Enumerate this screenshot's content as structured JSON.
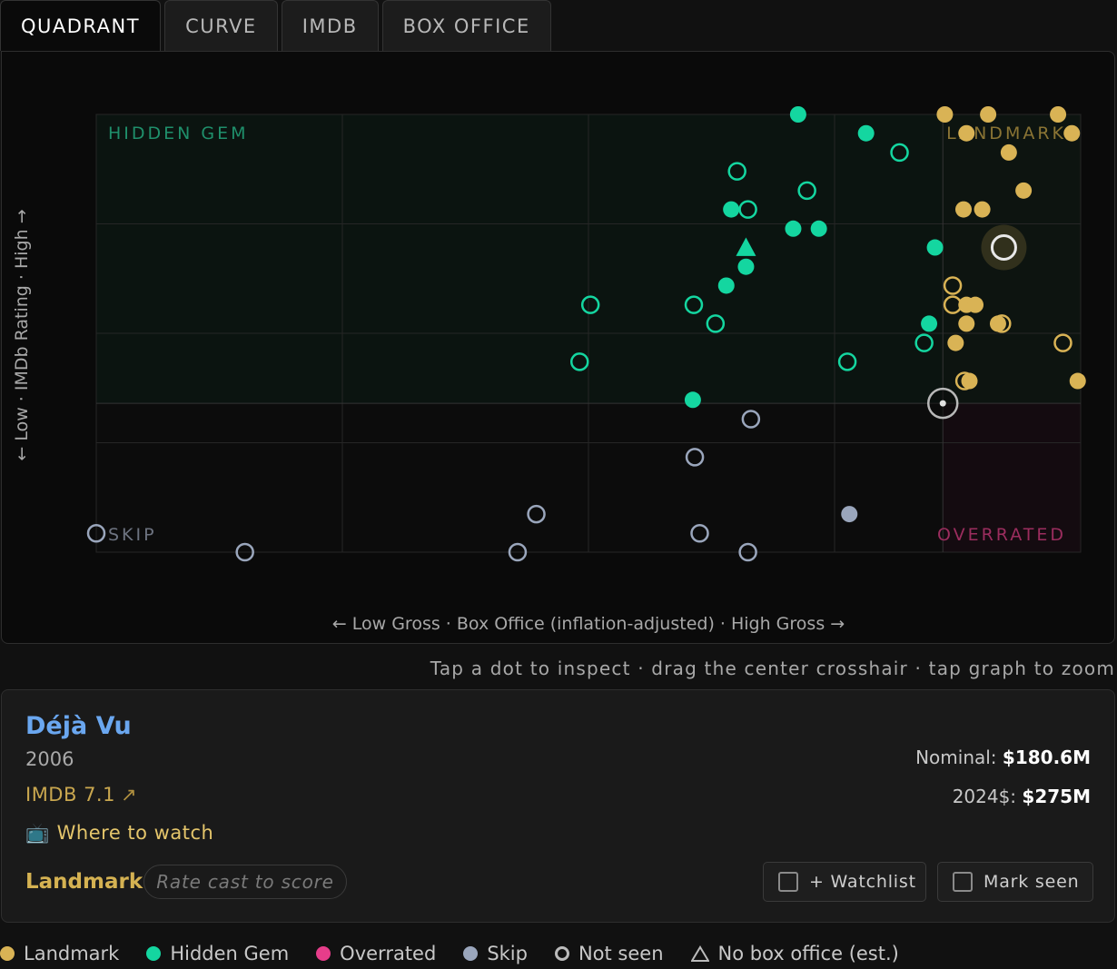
{
  "tabs": [
    "QUADRANT",
    "CURVE",
    "IMDB",
    "BOX OFFICE"
  ],
  "chart_data": {
    "type": "scatter",
    "xlabel": "← Low Gross · Box Office (inflation-adjusted) · High Gross →",
    "ylabel": "← Low · IMDb Rating · High →",
    "xlim": [
      0,
      100
    ],
    "ylim": [
      0,
      100
    ],
    "grid": true,
    "quadrant_labels": {
      "top_left": "HIDDEN GEM",
      "top_right": "LANDMARK",
      "bottom_left": "SKIP",
      "bottom_right": "OVERRATED"
    },
    "crosshair": {
      "x": 86,
      "y": 34
    },
    "selected": {
      "x": 92.2,
      "y": 69.6
    },
    "colors": {
      "landmark": "#d9b355",
      "hidden_gem": "#14d6a0",
      "overrated": "#e63d8a",
      "skip": "#9aa6bc"
    },
    "points": [
      {
        "x": 71.3,
        "y": 100,
        "cat": "hidden_gem",
        "seen": true
      },
      {
        "x": 78.2,
        "y": 95.7,
        "cat": "hidden_gem",
        "seen": true
      },
      {
        "x": 81.6,
        "y": 91.3,
        "cat": "hidden_gem",
        "seen": false
      },
      {
        "x": 65.1,
        "y": 87.0,
        "cat": "hidden_gem",
        "seen": false
      },
      {
        "x": 72.2,
        "y": 82.6,
        "cat": "hidden_gem",
        "seen": false
      },
      {
        "x": 64.5,
        "y": 78.3,
        "cat": "hidden_gem",
        "seen": true
      },
      {
        "x": 66.2,
        "y": 78.3,
        "cat": "hidden_gem",
        "seen": false
      },
      {
        "x": 70.8,
        "y": 73.9,
        "cat": "hidden_gem",
        "seen": true
      },
      {
        "x": 73.4,
        "y": 73.9,
        "cat": "hidden_gem",
        "seen": true
      },
      {
        "x": 66.0,
        "y": 69.6,
        "cat": "hidden_gem",
        "seen": true,
        "shape": "triangle"
      },
      {
        "x": 85.2,
        "y": 69.6,
        "cat": "hidden_gem",
        "seen": true
      },
      {
        "x": 66.0,
        "y": 65.2,
        "cat": "hidden_gem",
        "seen": true
      },
      {
        "x": 64.0,
        "y": 60.9,
        "cat": "hidden_gem",
        "seen": true
      },
      {
        "x": 50.2,
        "y": 56.5,
        "cat": "hidden_gem",
        "seen": false
      },
      {
        "x": 60.7,
        "y": 56.5,
        "cat": "hidden_gem",
        "seen": false
      },
      {
        "x": 62.9,
        "y": 52.2,
        "cat": "hidden_gem",
        "seen": false
      },
      {
        "x": 84.6,
        "y": 52.2,
        "cat": "hidden_gem",
        "seen": true
      },
      {
        "x": 84.1,
        "y": 47.8,
        "cat": "hidden_gem",
        "seen": false
      },
      {
        "x": 49.1,
        "y": 43.5,
        "cat": "hidden_gem",
        "seen": false
      },
      {
        "x": 76.3,
        "y": 43.5,
        "cat": "hidden_gem",
        "seen": false
      },
      {
        "x": 60.6,
        "y": 34.8,
        "cat": "hidden_gem",
        "seen": true
      },
      {
        "x": 86.2,
        "y": 100,
        "cat": "landmark",
        "seen": true
      },
      {
        "x": 90.6,
        "y": 100,
        "cat": "landmark",
        "seen": true
      },
      {
        "x": 97.7,
        "y": 100,
        "cat": "landmark",
        "seen": true
      },
      {
        "x": 88.4,
        "y": 95.7,
        "cat": "landmark",
        "seen": true
      },
      {
        "x": 99.1,
        "y": 95.7,
        "cat": "landmark",
        "seen": true
      },
      {
        "x": 92.7,
        "y": 91.3,
        "cat": "landmark",
        "seen": true
      },
      {
        "x": 94.2,
        "y": 82.6,
        "cat": "landmark",
        "seen": true
      },
      {
        "x": 88.1,
        "y": 78.3,
        "cat": "landmark",
        "seen": true
      },
      {
        "x": 90.0,
        "y": 78.3,
        "cat": "landmark",
        "seen": true
      },
      {
        "x": 92.2,
        "y": 69.6,
        "cat": "landmark",
        "seen": false,
        "selected": true
      },
      {
        "x": 87.0,
        "y": 60.9,
        "cat": "landmark",
        "seen": false
      },
      {
        "x": 87.0,
        "y": 56.5,
        "cat": "landmark",
        "seen": false
      },
      {
        "x": 88.4,
        "y": 56.5,
        "cat": "landmark",
        "seen": true
      },
      {
        "x": 89.3,
        "y": 56.5,
        "cat": "landmark",
        "seen": true
      },
      {
        "x": 88.4,
        "y": 52.2,
        "cat": "landmark",
        "seen": true
      },
      {
        "x": 91.6,
        "y": 52.2,
        "cat": "landmark",
        "seen": true
      },
      {
        "x": 92.0,
        "y": 52.2,
        "cat": "landmark",
        "seen": false
      },
      {
        "x": 87.3,
        "y": 47.8,
        "cat": "landmark",
        "seen": true
      },
      {
        "x": 98.2,
        "y": 47.8,
        "cat": "landmark",
        "seen": false
      },
      {
        "x": 88.2,
        "y": 39.1,
        "cat": "landmark",
        "seen": false
      },
      {
        "x": 88.7,
        "y": 39.1,
        "cat": "landmark",
        "seen": true
      },
      {
        "x": 99.7,
        "y": 39.1,
        "cat": "landmark",
        "seen": true
      },
      {
        "x": 66.5,
        "y": 30.4,
        "cat": "skip",
        "seen": false
      },
      {
        "x": 60.8,
        "y": 21.7,
        "cat": "skip",
        "seen": false
      },
      {
        "x": 44.7,
        "y": 8.7,
        "cat": "skip",
        "seen": false
      },
      {
        "x": 76.5,
        "y": 8.7,
        "cat": "skip",
        "seen": true
      },
      {
        "x": 0,
        "y": 4.3,
        "cat": "skip",
        "seen": false
      },
      {
        "x": 61.3,
        "y": 4.3,
        "cat": "skip",
        "seen": false
      },
      {
        "x": 15.1,
        "y": 0,
        "cat": "skip",
        "seen": false
      },
      {
        "x": 42.8,
        "y": 0,
        "cat": "skip",
        "seen": false
      },
      {
        "x": 66.2,
        "y": 0,
        "cat": "skip",
        "seen": false
      }
    ]
  },
  "hint": "Tap a dot to inspect · drag the center crosshair · tap graph to zoom",
  "detail": {
    "title": "Déjà Vu",
    "year": "2006",
    "imdb": "IMDB 7.1",
    "imdb_arrow": "↗",
    "watch_icon": "📺",
    "watch_label": "Where to watch",
    "category": "Landmark",
    "rate_cast": "Rate cast to score",
    "nominal_label": "Nominal:",
    "nominal_value": "$180.6M",
    "real_label": "2024$:",
    "real_value": "$275M",
    "watchlist_label": "+ Watchlist",
    "mark_seen_label": "Mark seen"
  },
  "legend": {
    "landmark": "Landmark",
    "hidden_gem": "Hidden Gem",
    "overrated": "Overrated",
    "skip": "Skip",
    "not_seen": "Not seen",
    "no_box_office": "No box office (est.)"
  }
}
